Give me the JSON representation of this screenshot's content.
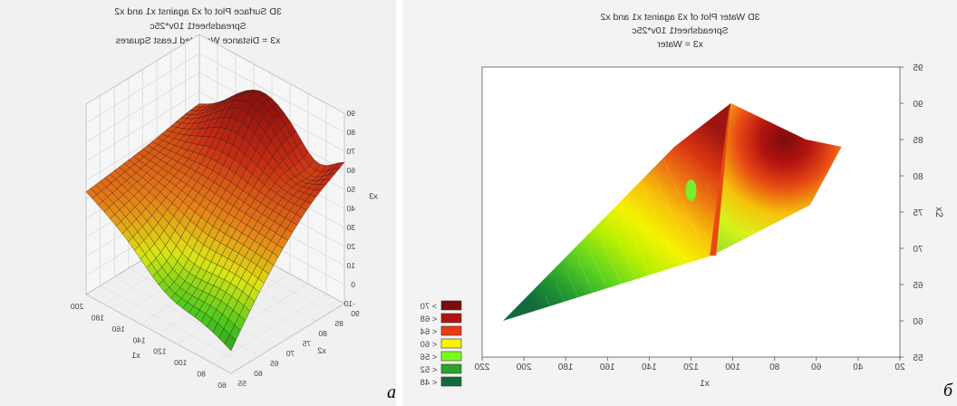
{
  "panel_a": {
    "title_lines": [
      "3D Surface Plot of x3 against x1 and x2",
      "Spreadsheet1 10v*25c",
      "x3 = Distance Weighted Least Squares"
    ],
    "letter": "a",
    "xlabel": "x1",
    "ylabel": "x2",
    "zlabel": "x3",
    "x_ticks": [
      "200",
      "180",
      "160",
      "140",
      "120",
      "100",
      "80",
      "60"
    ],
    "y_ticks": [
      "55",
      "60",
      "65",
      "70",
      "75",
      "80",
      "85",
      "90"
    ],
    "z_ticks": [
      "90",
      "80",
      "70",
      "60",
      "50",
      "40",
      "30",
      "20",
      "10",
      "0",
      "-10"
    ]
  },
  "panel_b": {
    "title_lines": [
      "3D Water Plot of x3 against x1 and x2",
      "Spreadsheet1 10v*25c",
      "x3 = Water"
    ],
    "letter": "б",
    "xlabel": "x1",
    "ylabel": "x2",
    "x_ticks": [
      "220",
      "200",
      "180",
      "160",
      "140",
      "120",
      "100",
      "80",
      "60",
      "40",
      "20"
    ],
    "y_ticks": [
      "95",
      "90",
      "85",
      "80",
      "75",
      "70",
      "65",
      "60",
      "55"
    ],
    "legend": [
      {
        "label": "> 70",
        "color": "#7a0c0c"
      },
      {
        "label": "< 68",
        "color": "#b3130f"
      },
      {
        "label": "< 64",
        "color": "#ea3b12"
      },
      {
        "label": "< 60",
        "color": "#f5f500"
      },
      {
        "label": "< 56",
        "color": "#7cff1c"
      },
      {
        "label": "< 52",
        "color": "#2aa32a"
      },
      {
        "label": "< 48",
        "color": "#136b3c"
      }
    ]
  },
  "chart_data": [
    {
      "type": "surface",
      "title": "3D Surface Plot of x3 against x1 and x2",
      "subtitle": "Spreadsheet1 10v*25c; x3 = Distance Weighted Least Squares",
      "xlabel": "x1",
      "ylabel": "x2",
      "zlabel": "x3",
      "xlim": [
        50,
        210
      ],
      "ylim": [
        55,
        92
      ],
      "zlim": [
        -10,
        90
      ],
      "corner_values": {
        "x1_200_x2_55": 45,
        "x1_200_x2_90": 52,
        "x1_50_x2_90": 75,
        "x1_50_x2_55": 5
      },
      "peak": {
        "x1": 120,
        "x2": 88,
        "x3": 85
      }
    },
    {
      "type": "contour",
      "title": "3D Water Plot of x3 against x1 and x2",
      "subtitle": "Spreadsheet1 10v*25c; x3 = Water",
      "xlabel": "x1",
      "ylabel": "x2",
      "xlim": [
        220,
        20
      ],
      "ylim": [
        55,
        95
      ],
      "boundary": [
        [
          210,
          60
        ],
        [
          128,
          84
        ],
        [
          101,
          90
        ],
        [
          65,
          85
        ],
        [
          48,
          84
        ],
        [
          63,
          76
        ],
        [
          110,
          69
        ]
      ],
      "levels": [
        48,
        52,
        56,
        60,
        64,
        68,
        70
      ]
    }
  ]
}
